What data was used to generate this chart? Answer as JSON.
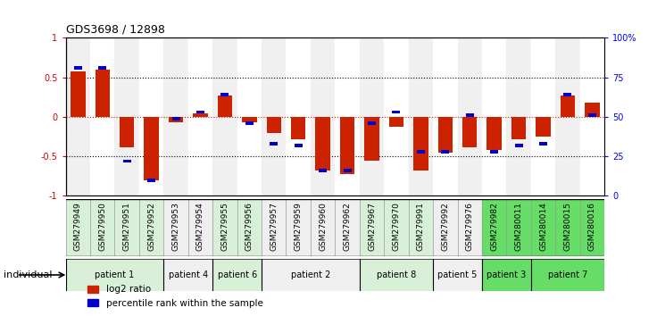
{
  "title": "GDS3698 / 12898",
  "samples": [
    "GSM279949",
    "GSM279950",
    "GSM279951",
    "GSM279952",
    "GSM279953",
    "GSM279954",
    "GSM279955",
    "GSM279956",
    "GSM279957",
    "GSM279959",
    "GSM279960",
    "GSM279962",
    "GSM279967",
    "GSM279970",
    "GSM279991",
    "GSM279992",
    "GSM279976",
    "GSM279982",
    "GSM280011",
    "GSM280014",
    "GSM280015",
    "GSM280016"
  ],
  "log2_ratio": [
    0.58,
    0.6,
    -0.38,
    -0.8,
    -0.07,
    0.05,
    0.27,
    -0.07,
    -0.2,
    -0.28,
    -0.68,
    -0.72,
    -0.55,
    -0.12,
    -0.68,
    -0.45,
    -0.38,
    -0.42,
    -0.28,
    -0.25,
    0.27,
    0.18
  ],
  "percentile_raw": [
    81,
    81,
    22,
    10,
    49,
    53,
    64,
    46,
    33,
    32,
    16,
    16,
    46,
    53,
    28,
    28,
    51,
    28,
    32,
    33,
    64,
    51
  ],
  "patients": [
    {
      "label": "patient 1",
      "start": 0,
      "end": 4,
      "shade": "light"
    },
    {
      "label": "patient 4",
      "start": 4,
      "end": 6,
      "shade": "white"
    },
    {
      "label": "patient 6",
      "start": 6,
      "end": 8,
      "shade": "light"
    },
    {
      "label": "patient 2",
      "start": 8,
      "end": 12,
      "shade": "white"
    },
    {
      "label": "patient 8",
      "start": 12,
      "end": 15,
      "shade": "light"
    },
    {
      "label": "patient 5",
      "start": 15,
      "end": 17,
      "shade": "white"
    },
    {
      "label": "patient 3",
      "start": 17,
      "end": 19,
      "shade": "green"
    },
    {
      "label": "patient 7",
      "start": 19,
      "end": 22,
      "shade": "green"
    }
  ],
  "bar_color_red": "#cc2200",
  "bar_color_blue": "#0000cc",
  "ylim": [
    -1,
    1
  ],
  "right_ylim": [
    0,
    100
  ],
  "hlines": [
    0.5,
    0.0,
    -0.5
  ],
  "hline_colors": [
    "black",
    "red",
    "black"
  ],
  "shade_light": "#d8efd8",
  "shade_white": "#efefef",
  "shade_green": "#66dd66",
  "plot_bg": "#ffffff",
  "legend_log2": "log2 ratio",
  "legend_pct": "percentile rank within the sample"
}
